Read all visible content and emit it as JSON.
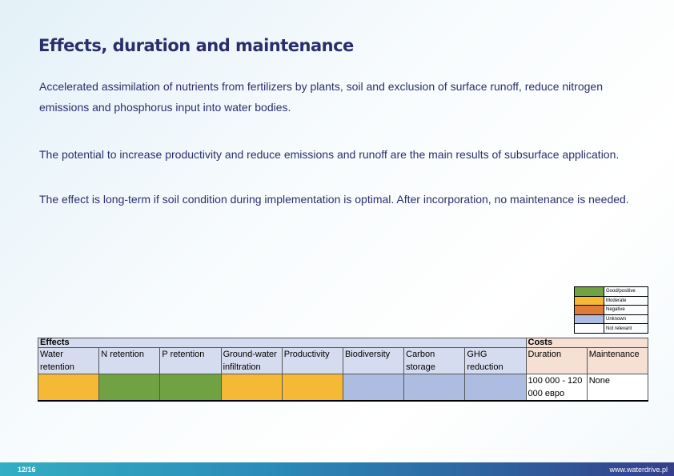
{
  "title": "Effects, duration and maintenance",
  "paragraphs": [
    "Accelerated assimilation of nutrients from fertilizers by plants, soil and exclusion of surface runoff, reduce nitrogen emissions and phosphorus input into water bodies.",
    "The potential to increase productivity and reduce emissions and runoff are the main results of subsurface application.",
    "The effect is long-term if soil condition during implementation is optimal. After incorporation, no maintenance is needed."
  ],
  "legend": [
    {
      "label": "Good/positive",
      "color": "#70a244"
    },
    {
      "label": "Moderate",
      "color": "#f6b935"
    },
    {
      "label": "Negative",
      "color": "#e07b39"
    },
    {
      "label": "Unknown",
      "color": "#adbde2"
    },
    {
      "label": "Not relevant",
      "color": "#ffffff"
    }
  ],
  "table": {
    "effects_header": "Effects",
    "costs_header": "Costs",
    "columns": [
      "Water retention",
      "N retention",
      "P retention",
      "Ground-water infiltration",
      "Productivity",
      "Biodiversity",
      "Carbon storage",
      "GHG reduction"
    ],
    "ratings": [
      "Moderate",
      "Good/positive",
      "Good/positive",
      "Moderate",
      "Moderate",
      "Unknown",
      "Unknown",
      "Unknown"
    ],
    "cost_columns": [
      "Duration",
      "Maintenance"
    ],
    "cost_values": [
      "100 000 - 120 000 евро",
      "None"
    ]
  },
  "footer": {
    "page": "12/16",
    "url": "www.waterdrive.pl"
  }
}
